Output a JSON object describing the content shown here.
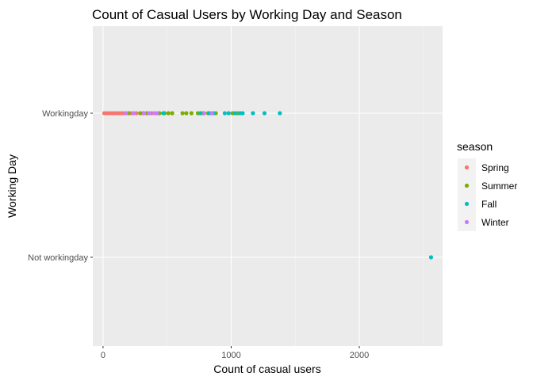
{
  "chart_data": {
    "type": "scatter",
    "title": "Count of Casual Users by Working Day and Season",
    "xlabel": "Count of casual users",
    "ylabel": "Working Day",
    "xlim": [
      -80,
      2650
    ],
    "x_ticks": [
      0,
      1000,
      2000
    ],
    "x_tick_labels": [
      "0",
      "1000",
      "2000"
    ],
    "categories": [
      "Workingday",
      "Not workingday"
    ],
    "grid": true,
    "legend": {
      "title": "season",
      "placement": "right"
    },
    "series": [
      {
        "name": "Spring",
        "color": "#F8766D",
        "points": [
          {
            "x": 10,
            "y": "Workingday"
          },
          {
            "x": 30,
            "y": "Workingday"
          },
          {
            "x": 50,
            "y": "Workingday"
          },
          {
            "x": 70,
            "y": "Workingday"
          },
          {
            "x": 90,
            "y": "Workingday"
          },
          {
            "x": 110,
            "y": "Workingday"
          },
          {
            "x": 130,
            "y": "Workingday"
          },
          {
            "x": 150,
            "y": "Workingday"
          },
          {
            "x": 170,
            "y": "Workingday"
          },
          {
            "x": 220,
            "y": "Workingday"
          },
          {
            "x": 260,
            "y": "Workingday"
          },
          {
            "x": 310,
            "y": "Workingday"
          },
          {
            "x": 380,
            "y": "Workingday"
          }
        ]
      },
      {
        "name": "Summer",
        "color": "#7CAE00",
        "points": [
          {
            "x": 200,
            "y": "Workingday"
          },
          {
            "x": 290,
            "y": "Workingday"
          },
          {
            "x": 340,
            "y": "Workingday"
          },
          {
            "x": 440,
            "y": "Workingday"
          },
          {
            "x": 480,
            "y": "Workingday"
          },
          {
            "x": 510,
            "y": "Workingday"
          },
          {
            "x": 540,
            "y": "Workingday"
          },
          {
            "x": 620,
            "y": "Workingday"
          },
          {
            "x": 650,
            "y": "Workingday"
          },
          {
            "x": 690,
            "y": "Workingday"
          },
          {
            "x": 740,
            "y": "Workingday"
          },
          {
            "x": 780,
            "y": "Workingday"
          },
          {
            "x": 820,
            "y": "Workingday"
          },
          {
            "x": 880,
            "y": "Workingday"
          },
          {
            "x": 1010,
            "y": "Workingday"
          },
          {
            "x": 1050,
            "y": "Workingday"
          }
        ]
      },
      {
        "name": "Fall",
        "color": "#00BFC4",
        "points": [
          {
            "x": 470,
            "y": "Workingday"
          },
          {
            "x": 760,
            "y": "Workingday"
          },
          {
            "x": 830,
            "y": "Workingday"
          },
          {
            "x": 860,
            "y": "Workingday"
          },
          {
            "x": 950,
            "y": "Workingday"
          },
          {
            "x": 980,
            "y": "Workingday"
          },
          {
            "x": 1030,
            "y": "Workingday"
          },
          {
            "x": 1070,
            "y": "Workingday"
          },
          {
            "x": 1090,
            "y": "Workingday"
          },
          {
            "x": 1170,
            "y": "Workingday"
          },
          {
            "x": 1260,
            "y": "Workingday"
          },
          {
            "x": 1380,
            "y": "Workingday"
          },
          {
            "x": 2560,
            "y": "Not workingday"
          }
        ]
      },
      {
        "name": "Winter",
        "color": "#C77CFF",
        "points": [
          {
            "x": 180,
            "y": "Workingday"
          },
          {
            "x": 240,
            "y": "Workingday"
          },
          {
            "x": 320,
            "y": "Workingday"
          },
          {
            "x": 360,
            "y": "Workingday"
          },
          {
            "x": 400,
            "y": "Workingday"
          },
          {
            "x": 420,
            "y": "Workingday"
          },
          {
            "x": 790,
            "y": "Workingday"
          },
          {
            "x": 850,
            "y": "Workingday"
          }
        ]
      }
    ]
  }
}
